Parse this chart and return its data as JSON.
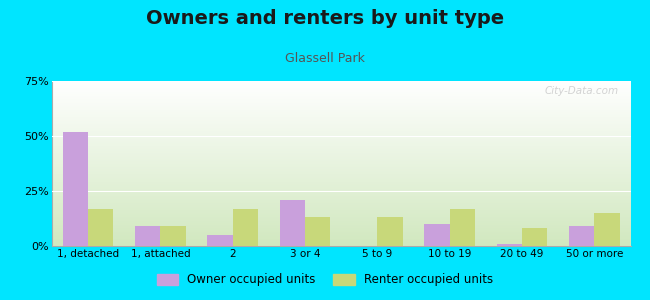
{
  "title": "Owners and renters by unit type",
  "subtitle": "Glassell Park",
  "categories": [
    "1, detached",
    "1, attached",
    "2",
    "3 or 4",
    "5 to 9",
    "10 to 19",
    "20 to 49",
    "50 or more"
  ],
  "owner_values": [
    52,
    9,
    5,
    21,
    0,
    10,
    1,
    9
  ],
  "renter_values": [
    17,
    9,
    17,
    13,
    13,
    17,
    8,
    15
  ],
  "owner_color": "#c9a0dc",
  "renter_color": "#c8d87a",
  "ylim": [
    0,
    75
  ],
  "yticks": [
    0,
    25,
    50,
    75
  ],
  "ytick_labels": [
    "0%",
    "25%",
    "50%",
    "75%"
  ],
  "bar_width": 0.35,
  "background_outer": "#00e5ff",
  "legend_owner": "Owner occupied units",
  "legend_renter": "Renter occupied units",
  "title_fontsize": 14,
  "subtitle_fontsize": 9,
  "watermark": "City-Data.com"
}
